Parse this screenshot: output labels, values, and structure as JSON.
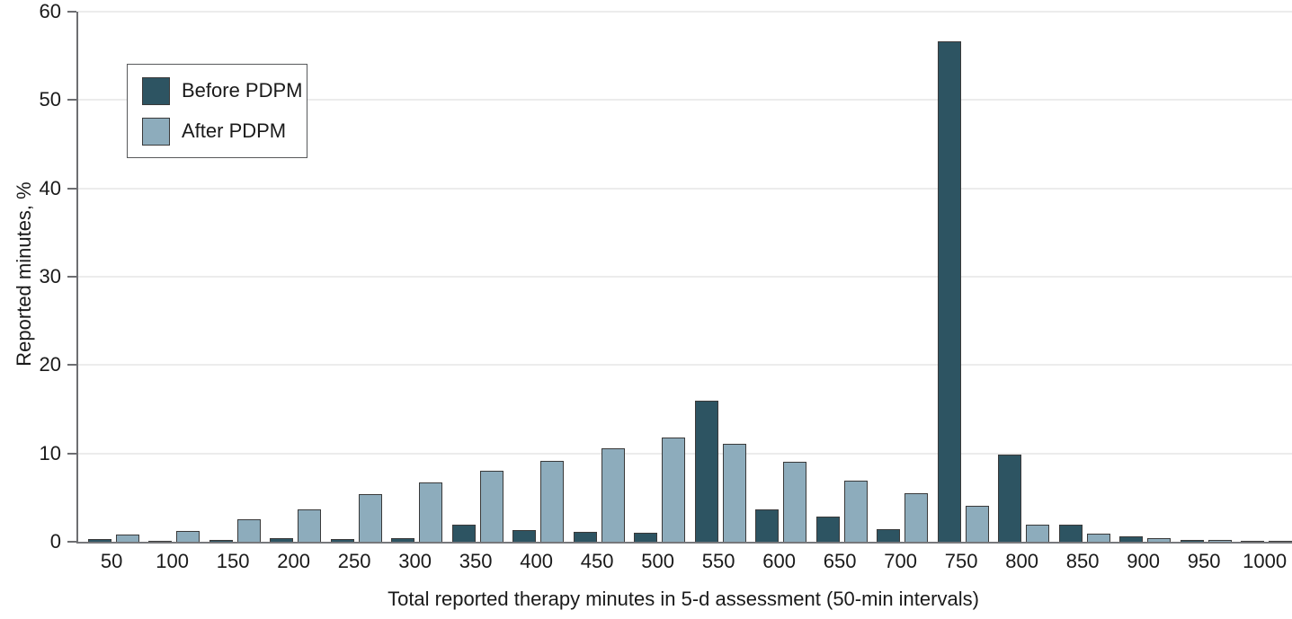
{
  "chart_data": {
    "type": "bar",
    "title": "",
    "xlabel": "Total reported therapy minutes in 5-d assessment (50-min intervals)",
    "ylabel": "Reported minutes, %",
    "categories": [
      50,
      100,
      150,
      200,
      250,
      300,
      350,
      400,
      450,
      500,
      550,
      600,
      650,
      700,
      750,
      800,
      850,
      900,
      950,
      1000
    ],
    "series": [
      {
        "name": "Before PDPM",
        "color": "#2d5462",
        "values": [
          0.3,
          0.15,
          0.25,
          0.4,
          0.3,
          0.4,
          1.9,
          1.3,
          1.1,
          1.0,
          16.0,
          3.7,
          2.8,
          1.4,
          56.6,
          9.9,
          1.9,
          0.6,
          0.25,
          0.12
        ]
      },
      {
        "name": "After PDPM",
        "color": "#8dacbc",
        "values": [
          0.8,
          1.2,
          2.5,
          3.7,
          5.4,
          6.7,
          8.0,
          9.2,
          10.6,
          11.8,
          11.1,
          9.1,
          6.9,
          5.5,
          4.1,
          1.9,
          0.9,
          0.4,
          0.2,
          0.12
        ]
      }
    ],
    "ylim": [
      0,
      60
    ],
    "yticks": [
      0,
      10,
      20,
      30,
      40,
      50,
      60
    ],
    "grid": true,
    "legend_position": "top-left",
    "style": {
      "axis_color": "#6d6e71",
      "grid_color": "#ececec",
      "text_color": "#1a1a1a",
      "bar_border_color": "#3a3a3a",
      "legend_border_color": "#58595b",
      "background": "#ffffff"
    }
  }
}
